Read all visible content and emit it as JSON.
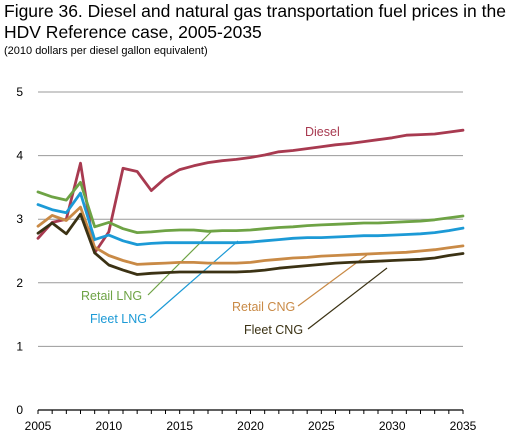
{
  "header": {
    "title": "Figure 36. Diesel and natural gas transportation fuel prices in the HDV Reference case, 2005-2035",
    "subtitle": "(2010 dollars per diesel gallon equivalent)"
  },
  "chart_data": {
    "type": "line",
    "title": "Figure 36. Diesel and natural gas transportation fuel prices in the HDV Reference case, 2005-2035",
    "subtitle": "(2010 dollars per diesel gallon equivalent)",
    "xlim": [
      2005,
      2035
    ],
    "ylim": [
      0,
      5
    ],
    "x_ticks": [
      "2005",
      "2010",
      "2015",
      "2020",
      "2025",
      "2030",
      "2035"
    ],
    "y_ticks": [
      "0",
      "1",
      "2",
      "3",
      "4",
      "5"
    ],
    "grid": "horizontal",
    "x": [
      2005,
      2006,
      2007,
      2008,
      2009,
      2010,
      2011,
      2012,
      2013,
      2014,
      2015,
      2016,
      2017,
      2018,
      2019,
      2020,
      2021,
      2022,
      2023,
      2024,
      2025,
      2026,
      2027,
      2028,
      2029,
      2030,
      2031,
      2032,
      2033,
      2034,
      2035
    ],
    "series": [
      {
        "name": "Diesel",
        "color": "#a83a50",
        "values": [
          2.7,
          2.95,
          3.0,
          3.88,
          2.47,
          2.8,
          3.8,
          3.75,
          3.45,
          3.65,
          3.78,
          3.84,
          3.89,
          3.92,
          3.94,
          3.97,
          4.01,
          4.06,
          4.08,
          4.11,
          4.14,
          4.17,
          4.19,
          4.22,
          4.25,
          4.28,
          4.32,
          4.33,
          4.34,
          4.37,
          4.4
        ]
      },
      {
        "name": "Retail LNG",
        "color": "#6ea345",
        "values": [
          3.43,
          3.35,
          3.3,
          3.58,
          2.88,
          2.95,
          2.85,
          2.79,
          2.8,
          2.82,
          2.83,
          2.83,
          2.81,
          2.82,
          2.82,
          2.83,
          2.85,
          2.87,
          2.88,
          2.9,
          2.91,
          2.92,
          2.93,
          2.94,
          2.94,
          2.95,
          2.96,
          2.97,
          2.99,
          3.02,
          3.05
        ]
      },
      {
        "name": "Fleet LNG",
        "color": "#1c9ad6",
        "values": [
          3.23,
          3.15,
          3.1,
          3.41,
          2.68,
          2.75,
          2.66,
          2.6,
          2.62,
          2.63,
          2.63,
          2.63,
          2.63,
          2.63,
          2.63,
          2.64,
          2.66,
          2.68,
          2.7,
          2.71,
          2.71,
          2.72,
          2.73,
          2.74,
          2.74,
          2.75,
          2.76,
          2.77,
          2.79,
          2.82,
          2.86
        ]
      },
      {
        "name": "Retail CNG",
        "color": "#c98a46",
        "values": [
          2.89,
          3.06,
          2.98,
          3.19,
          2.56,
          2.43,
          2.35,
          2.29,
          2.3,
          2.31,
          2.32,
          2.32,
          2.31,
          2.31,
          2.31,
          2.32,
          2.35,
          2.37,
          2.39,
          2.4,
          2.42,
          2.43,
          2.44,
          2.45,
          2.46,
          2.47,
          2.48,
          2.5,
          2.52,
          2.55,
          2.58
        ]
      },
      {
        "name": "Fleet CNG",
        "color": "#3b3214",
        "values": [
          2.78,
          2.94,
          2.77,
          3.08,
          2.47,
          2.28,
          2.2,
          2.13,
          2.15,
          2.16,
          2.17,
          2.17,
          2.17,
          2.17,
          2.17,
          2.18,
          2.2,
          2.23,
          2.25,
          2.27,
          2.29,
          2.31,
          2.32,
          2.33,
          2.34,
          2.35,
          2.36,
          2.37,
          2.39,
          2.43,
          2.46
        ]
      }
    ],
    "annotations": [
      "Diesel",
      "Retail LNG",
      "Fleet LNG",
      "Retail CNG",
      "Fleet CNG"
    ]
  }
}
